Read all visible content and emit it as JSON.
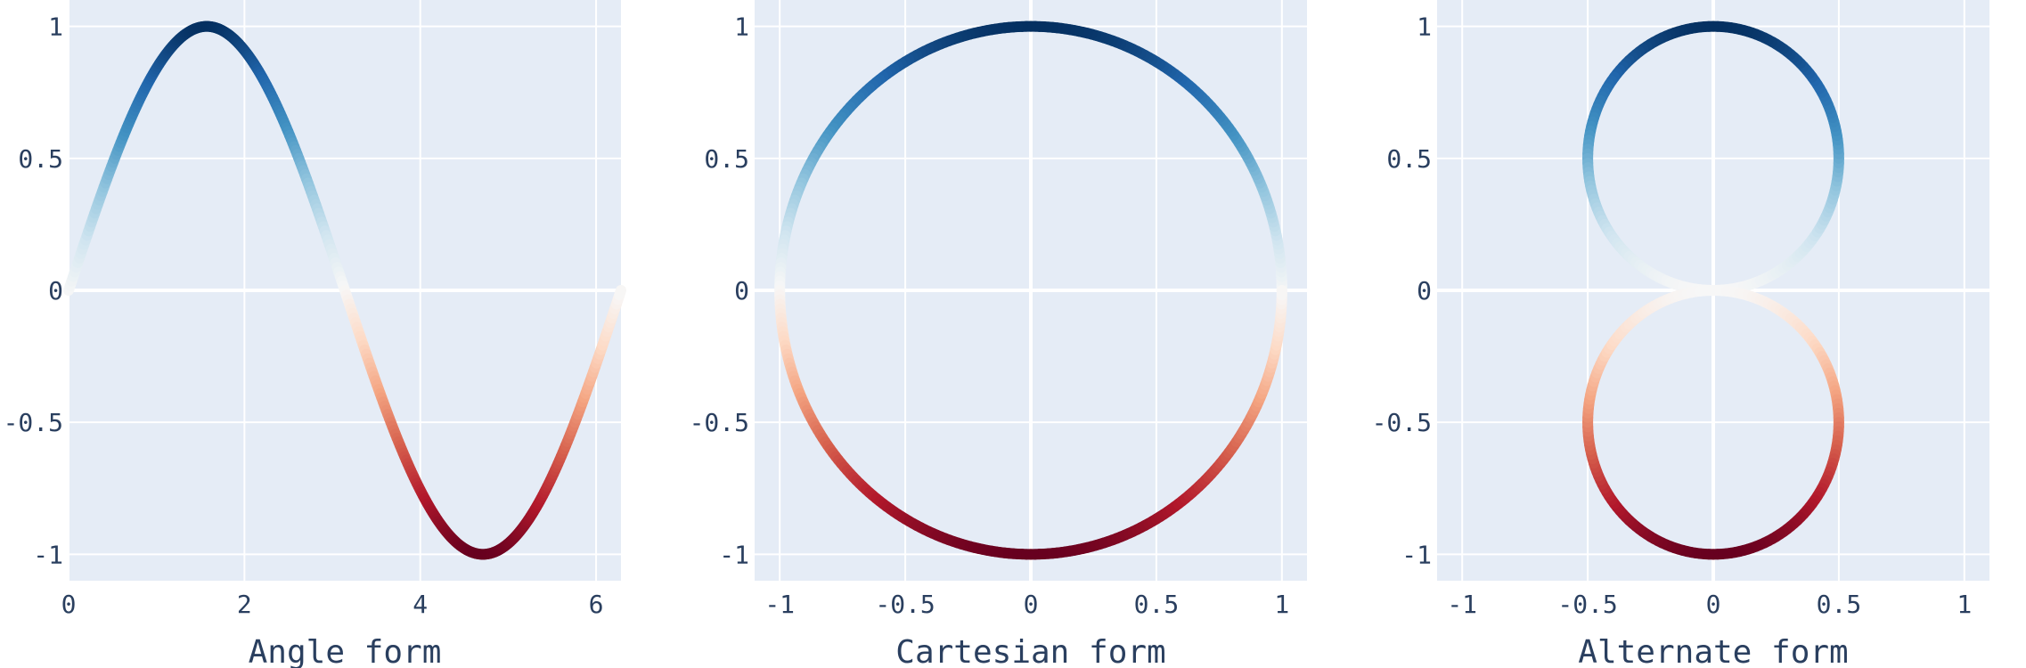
{
  "colors": {
    "plot_bg": "#e5ecf6",
    "grid": "#ffffff",
    "text": "#2a3f5f",
    "colorscale": [
      "#053061",
      "#2166ac",
      "#4393c3",
      "#92c5de",
      "#d1e5f0",
      "#f7f7f7",
      "#fddbc7",
      "#f4a582",
      "#d6604d",
      "#b2182b",
      "#67001f"
    ]
  },
  "chart_data": [
    {
      "type": "line",
      "xlabel": "Angle form",
      "ylabel": "",
      "curve": "y = sin(t), x = t, t from 0 to 2π",
      "x_range": [
        0,
        6.2832
      ],
      "y_range": [
        -1.1,
        1.1
      ],
      "x_ticks": [
        "0",
        "2",
        "4",
        "6"
      ],
      "y_ticks": [
        "-1",
        "-0.5",
        "0",
        "0.5",
        "1"
      ],
      "grid": true,
      "color_by": "y (sin t) on red-blue diverging scale, blue high, red low"
    },
    {
      "type": "line",
      "xlabel": "Cartesian form",
      "ylabel": "",
      "curve": "x = cos(t), y = sin(t), unit circle",
      "x_range": [
        -1.1,
        1.1
      ],
      "y_range": [
        -1.1,
        1.1
      ],
      "x_ticks": [
        "-1",
        "-0.5",
        "0",
        "0.5",
        "1"
      ],
      "y_ticks": [
        "-1",
        "-0.5",
        "0",
        "0.5",
        "1"
      ],
      "grid": true,
      "color_by": "y (sin t) on red-blue diverging scale, blue high, red low"
    },
    {
      "type": "line",
      "xlabel": "Alternate form",
      "ylabel": "",
      "curve": "x = sin(t)cos(t), y = sin(t)|sin(t)|, figure-eight",
      "x_range": [
        -1.1,
        1.1
      ],
      "y_range": [
        -1.1,
        1.1
      ],
      "x_ticks": [
        "-1",
        "-0.5",
        "0",
        "0.5",
        "1"
      ],
      "y_ticks": [
        "-1",
        "-0.5",
        "0",
        "0.5",
        "1"
      ],
      "grid": true,
      "color_by": "y on red-blue diverging scale, blue high, red low"
    }
  ]
}
